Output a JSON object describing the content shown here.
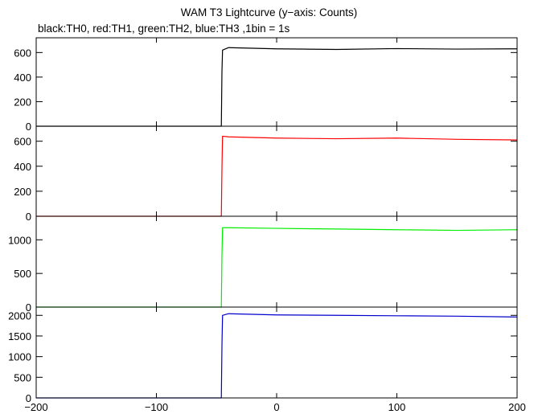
{
  "title": "WAM T3 Lightcurve (y−axis: Counts)",
  "subtitle": "black:TH0, red:TH1, green:TH2, blue:TH3 ,1bin = 1s",
  "chart_data": [
    {
      "type": "line",
      "series": [
        {
          "name": "TH0",
          "color": "#000000",
          "x": [
            -200,
            -46,
            -45.5,
            -45,
            -40,
            0,
            50,
            100,
            150,
            200
          ],
          "values": [
            0,
            0,
            440,
            620,
            640,
            630,
            625,
            632,
            628,
            630
          ]
        }
      ],
      "ylim": [
        0,
        720
      ],
      "yticks": [
        0,
        200,
        400,
        600
      ],
      "xlim": [
        -200,
        200
      ],
      "xticks": [
        -200,
        -100,
        0,
        100,
        200
      ]
    },
    {
      "type": "line",
      "series": [
        {
          "name": "TH1",
          "color": "#ff0000",
          "x": [
            -200,
            -46,
            -45.5,
            -45,
            -40,
            0,
            50,
            100,
            150,
            200
          ],
          "values": [
            0,
            0,
            380,
            640,
            635,
            625,
            620,
            625,
            615,
            610
          ]
        }
      ],
      "ylim": [
        0,
        720
      ],
      "yticks": [
        0,
        200,
        400,
        600
      ],
      "xlim": [
        -200,
        200
      ],
      "xticks": [
        -200,
        -100,
        0,
        100,
        200
      ]
    },
    {
      "type": "line",
      "series": [
        {
          "name": "TH2",
          "color": "#00ee00",
          "x": [
            -200,
            -46,
            -45.5,
            -45,
            -40,
            0,
            50,
            100,
            150,
            200
          ],
          "values": [
            0,
            0,
            760,
            1180,
            1180,
            1170,
            1160,
            1150,
            1140,
            1150
          ]
        }
      ],
      "ylim": [
        0,
        1350
      ],
      "yticks": [
        0,
        500,
        1000
      ],
      "xlim": [
        -200,
        200
      ],
      "xticks": [
        -200,
        -100,
        0,
        100,
        200
      ]
    },
    {
      "type": "line",
      "series": [
        {
          "name": "TH3",
          "color": "#0000cc",
          "x": [
            -200,
            -46,
            -45.5,
            -45,
            -40,
            0,
            50,
            100,
            150,
            200
          ],
          "values": [
            0,
            0,
            1250,
            2000,
            2040,
            2010,
            2000,
            1990,
            1980,
            1960
          ]
        }
      ],
      "ylim": [
        0,
        2200
      ],
      "yticks": [
        0,
        500,
        1000,
        1500,
        2000
      ],
      "xlim": [
        -200,
        200
      ],
      "xticks": [
        -200,
        -100,
        0,
        100,
        200
      ]
    }
  ]
}
